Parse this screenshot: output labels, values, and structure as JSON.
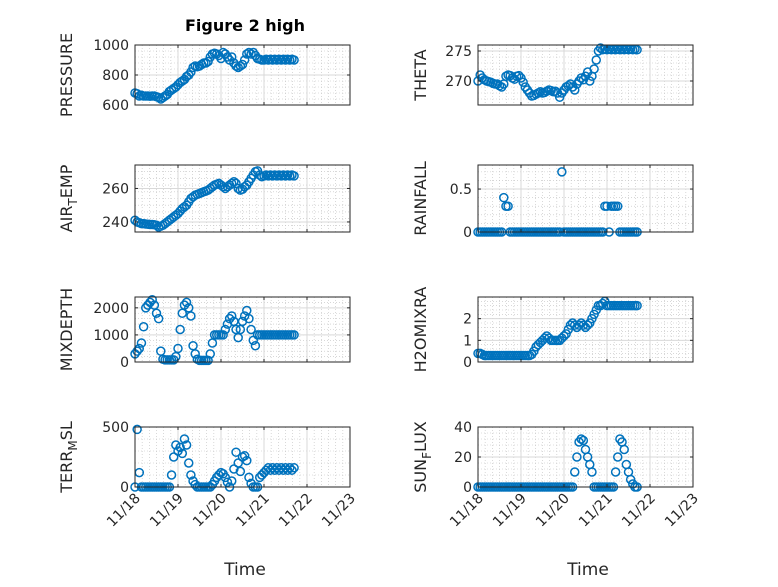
{
  "figure_title": "Figure 2 high",
  "xlabel_left": "Time",
  "xlabel_right": "Time",
  "x_tick_labels": [
    "11/18",
    "11/19",
    "11/20",
    "11/21",
    "11/22",
    "11/23"
  ],
  "colors": {
    "marker": "#0072BD",
    "axis": "#262626",
    "grid": "#d9d9d9",
    "minor_grid": "#c0c0c0"
  },
  "chart_data": [
    {
      "type": "scatter",
      "ylabel_parts": [
        "PRESSURE"
      ],
      "ylim": [
        600,
        1000
      ],
      "yticks": [
        600,
        800,
        1000
      ],
      "yticklabels": [
        "600",
        "800",
        "1000"
      ],
      "xlim": [
        0,
        5
      ],
      "grid": true,
      "minor_grid": true,
      "x": [
        0.0,
        0.05,
        0.1,
        0.15,
        0.2,
        0.25,
        0.3,
        0.35,
        0.4,
        0.45,
        0.5,
        0.55,
        0.6,
        0.65,
        0.7,
        0.75,
        0.8,
        0.85,
        0.9,
        0.95,
        1.0,
        1.05,
        1.1,
        1.15,
        1.2,
        1.25,
        1.3,
        1.35,
        1.4,
        1.45,
        1.5,
        1.55,
        1.6,
        1.65,
        1.7,
        1.75,
        1.8,
        1.85,
        1.9,
        1.95,
        2.0,
        2.05,
        2.1,
        2.15,
        2.2,
        2.25,
        2.3,
        2.35,
        2.4,
        2.45,
        2.5,
        2.55,
        2.6,
        2.65,
        2.7,
        2.75,
        2.8,
        2.85,
        2.9,
        2.95,
        3.0,
        3.05,
        3.1,
        3.15,
        3.2,
        3.25,
        3.3,
        3.35,
        3.4,
        3.45,
        3.5,
        3.55,
        3.6,
        3.65,
        3.7
      ],
      "y": [
        680,
        675,
        660,
        665,
        660,
        660,
        660,
        658,
        660,
        660,
        655,
        650,
        640,
        650,
        660,
        670,
        690,
        700,
        710,
        720,
        735,
        750,
        760,
        770,
        790,
        800,
        820,
        850,
        860,
        855,
        860,
        870,
        880,
        880,
        890,
        920,
        940,
        945,
        940,
        930,
        910,
        950,
        940,
        920,
        900,
        920,
        880,
        860,
        850,
        860,
        870,
        900,
        940,
        950,
        940,
        950,
        930,
        910,
        905,
        900,
        900,
        905,
        900,
        905,
        900,
        905,
        900,
        905,
        900,
        905,
        900,
        905,
        900,
        905,
        900
      ]
    },
    {
      "type": "scatter",
      "ylabel_parts": [
        "THETA"
      ],
      "ylim": [
        266,
        276
      ],
      "yticks": [
        270,
        275
      ],
      "yticklabels": [
        "270",
        "275"
      ],
      "xlim": [
        0,
        5
      ],
      "grid": true,
      "minor_grid": true,
      "x": [
        0.0,
        0.05,
        0.1,
        0.15,
        0.2,
        0.25,
        0.3,
        0.35,
        0.4,
        0.45,
        0.5,
        0.55,
        0.6,
        0.65,
        0.7,
        0.75,
        0.8,
        0.85,
        0.9,
        0.95,
        1.0,
        1.05,
        1.1,
        1.15,
        1.2,
        1.25,
        1.3,
        1.35,
        1.4,
        1.45,
        1.5,
        1.55,
        1.6,
        1.65,
        1.7,
        1.75,
        1.8,
        1.85,
        1.9,
        1.95,
        2.0,
        2.05,
        2.1,
        2.15,
        2.2,
        2.25,
        2.3,
        2.35,
        2.4,
        2.45,
        2.5,
        2.55,
        2.6,
        2.65,
        2.7,
        2.75,
        2.8,
        2.85,
        2.9,
        2.95,
        3.0,
        3.05,
        3.1,
        3.15,
        3.2,
        3.25,
        3.3,
        3.35,
        3.4,
        3.45,
        3.5,
        3.55,
        3.6,
        3.65,
        3.7
      ],
      "y": [
        270.0,
        271.0,
        270.5,
        270.2,
        270.0,
        269.9,
        269.8,
        269.6,
        269.5,
        269.5,
        269.2,
        269.0,
        269.5,
        270.8,
        271.0,
        270.9,
        270.5,
        270.3,
        270.8,
        270.9,
        270.5,
        269.8,
        269.0,
        268.5,
        268.0,
        267.5,
        267.6,
        267.8,
        268.0,
        268.2,
        268.0,
        268.1,
        268.3,
        268.5,
        268.4,
        268.2,
        268.3,
        268.0,
        267.3,
        268.0,
        268.5,
        269.0,
        269.2,
        269.5,
        269.0,
        268.5,
        269.5,
        270.0,
        270.5,
        270.2,
        270.8,
        271.5,
        270.0,
        270.8,
        272.0,
        273.5,
        275.0,
        275.5,
        275.2,
        275.3,
        275.2,
        275.3,
        275.2,
        275.3,
        275.2,
        275.3,
        275.2,
        275.3,
        275.2,
        275.3,
        275.2,
        275.3,
        275.2,
        275.3,
        275.2
      ]
    },
    {
      "type": "scatter",
      "ylabel_parts": [
        "AIR",
        "T",
        "EMP"
      ],
      "ylim": [
        234,
        274
      ],
      "yticks": [
        240,
        260
      ],
      "yticklabels": [
        "240",
        "260"
      ],
      "xlim": [
        0,
        5
      ],
      "grid": true,
      "minor_grid": true,
      "x": [
        0.0,
        0.05,
        0.1,
        0.15,
        0.2,
        0.25,
        0.3,
        0.35,
        0.4,
        0.45,
        0.5,
        0.55,
        0.6,
        0.65,
        0.7,
        0.75,
        0.8,
        0.85,
        0.9,
        0.95,
        1.0,
        1.05,
        1.1,
        1.15,
        1.2,
        1.25,
        1.3,
        1.35,
        1.4,
        1.45,
        1.5,
        1.55,
        1.6,
        1.65,
        1.7,
        1.75,
        1.8,
        1.85,
        1.9,
        1.95,
        2.0,
        2.05,
        2.1,
        2.15,
        2.2,
        2.25,
        2.3,
        2.35,
        2.4,
        2.45,
        2.5,
        2.55,
        2.6,
        2.65,
        2.7,
        2.75,
        2.8,
        2.85,
        2.9,
        2.95,
        3.0,
        3.05,
        3.1,
        3.15,
        3.2,
        3.25,
        3.3,
        3.35,
        3.4,
        3.45,
        3.5,
        3.55,
        3.6,
        3.65,
        3.7
      ],
      "y": [
        241,
        240,
        239.5,
        239,
        239,
        238.8,
        238.6,
        238.5,
        238.5,
        238.3,
        238,
        237,
        237.5,
        238,
        239,
        240,
        241,
        242,
        243,
        244,
        245,
        246.5,
        248,
        249,
        250,
        252,
        254,
        255,
        256,
        256.5,
        257,
        257.5,
        258,
        258.5,
        259,
        260,
        261,
        262,
        262.5,
        263,
        262,
        261,
        260,
        261,
        262,
        263,
        264,
        263,
        260,
        259,
        259.5,
        261,
        262,
        264,
        266,
        268,
        270,
        270.5,
        268,
        267,
        267.5,
        268,
        267.5,
        268,
        267.5,
        268,
        267.5,
        268,
        267.5,
        268,
        267.5,
        268,
        267.5,
        268,
        267.5
      ]
    },
    {
      "type": "scatter",
      "ylabel_parts": [
        "RAINFALL"
      ],
      "ylim": [
        0,
        0.78
      ],
      "yticks": [
        0,
        0.5
      ],
      "yticklabels": [
        "0",
        "0.5"
      ],
      "xlim": [
        0,
        5
      ],
      "grid": true,
      "minor_grid": true,
      "x": [
        0.0,
        0.05,
        0.1,
        0.15,
        0.2,
        0.25,
        0.3,
        0.35,
        0.4,
        0.45,
        0.5,
        0.55,
        0.6,
        0.65,
        0.7,
        0.75,
        0.8,
        0.85,
        0.9,
        0.95,
        1.0,
        1.05,
        1.1,
        1.15,
        1.2,
        1.25,
        1.3,
        1.35,
        1.4,
        1.45,
        1.5,
        1.55,
        1.6,
        1.65,
        1.7,
        1.75,
        1.8,
        1.85,
        1.9,
        1.95,
        2.0,
        2.05,
        2.1,
        2.15,
        2.2,
        2.25,
        2.3,
        2.35,
        2.4,
        2.45,
        2.5,
        2.55,
        2.6,
        2.65,
        2.7,
        2.75,
        2.8,
        2.85,
        2.9,
        2.95,
        3.0,
        3.05,
        3.1,
        3.15,
        3.2,
        3.25,
        3.3,
        3.35,
        3.4,
        3.45,
        3.5,
        3.55,
        3.6,
        3.65,
        3.7
      ],
      "y": [
        0,
        0,
        0,
        0,
        0,
        0,
        0,
        0,
        0,
        0,
        0,
        0,
        0.4,
        0.3,
        0.3,
        0,
        0,
        0,
        0,
        0,
        0,
        0,
        0,
        0,
        0,
        0,
        0,
        0,
        0,
        0,
        0,
        0,
        0,
        0,
        0,
        0,
        0,
        0,
        0,
        0.7,
        0,
        0,
        0,
        0,
        0,
        0,
        0,
        0,
        0,
        0,
        0,
        0,
        0,
        0,
        0,
        0,
        0,
        0,
        0,
        0.3,
        0.3,
        0,
        0.3,
        0.3,
        0.3,
        0.3,
        0,
        0,
        0,
        0,
        0,
        0,
        0,
        0,
        0
      ]
    },
    {
      "type": "scatter",
      "ylabel_parts": [
        "MIXDEPTH"
      ],
      "ylim": [
        0,
        2400
      ],
      "yticks": [
        0,
        1000,
        2000
      ],
      "yticklabels": [
        "0",
        "1000",
        "2000"
      ],
      "xlim": [
        0,
        5
      ],
      "grid": true,
      "minor_grid": true,
      "x": [
        0.0,
        0.05,
        0.1,
        0.15,
        0.2,
        0.25,
        0.3,
        0.35,
        0.4,
        0.45,
        0.5,
        0.55,
        0.6,
        0.65,
        0.7,
        0.75,
        0.8,
        0.85,
        0.9,
        0.95,
        1.0,
        1.05,
        1.1,
        1.15,
        1.2,
        1.25,
        1.3,
        1.35,
        1.4,
        1.45,
        1.5,
        1.55,
        1.6,
        1.65,
        1.7,
        1.75,
        1.8,
        1.85,
        1.9,
        1.95,
        2.0,
        2.05,
        2.1,
        2.15,
        2.2,
        2.25,
        2.3,
        2.35,
        2.4,
        2.45,
        2.5,
        2.55,
        2.6,
        2.65,
        2.7,
        2.75,
        2.8,
        2.85,
        2.9,
        2.95,
        3.0,
        3.05,
        3.1,
        3.15,
        3.2,
        3.25,
        3.3,
        3.35,
        3.4,
        3.45,
        3.5,
        3.55,
        3.6,
        3.65,
        3.7
      ],
      "y": [
        300,
        400,
        500,
        700,
        1300,
        2000,
        2100,
        2200,
        2300,
        2100,
        1800,
        1600,
        400,
        100,
        80,
        80,
        80,
        80,
        80,
        200,
        500,
        1200,
        1800,
        2100,
        2200,
        2000,
        1700,
        600,
        300,
        100,
        60,
        60,
        60,
        60,
        60,
        300,
        700,
        1000,
        1000,
        1000,
        1000,
        1000,
        1200,
        1400,
        1600,
        1700,
        1500,
        1200,
        900,
        1200,
        1500,
        1700,
        1900,
        1600,
        1200,
        800,
        600,
        1000,
        1000,
        1000,
        1000,
        1000,
        1000,
        1000,
        1000,
        1000,
        1000,
        1000,
        1000,
        1000,
        1000,
        1000,
        1000,
        1000,
        1000
      ]
    },
    {
      "type": "scatter",
      "ylabel_parts": [
        "H2OMIXRA"
      ],
      "ylim": [
        0,
        3
      ],
      "yticks": [
        0,
        1,
        2
      ],
      "yticklabels": [
        "0",
        "1",
        "2"
      ],
      "xlim": [
        0,
        5
      ],
      "grid": true,
      "minor_grid": true,
      "x": [
        0.0,
        0.05,
        0.1,
        0.15,
        0.2,
        0.25,
        0.3,
        0.35,
        0.4,
        0.45,
        0.5,
        0.55,
        0.6,
        0.65,
        0.7,
        0.75,
        0.8,
        0.85,
        0.9,
        0.95,
        1.0,
        1.05,
        1.1,
        1.15,
        1.2,
        1.25,
        1.3,
        1.35,
        1.4,
        1.45,
        1.5,
        1.55,
        1.6,
        1.65,
        1.7,
        1.75,
        1.8,
        1.85,
        1.9,
        1.95,
        2.0,
        2.05,
        2.1,
        2.15,
        2.2,
        2.25,
        2.3,
        2.35,
        2.4,
        2.45,
        2.5,
        2.55,
        2.6,
        2.65,
        2.7,
        2.75,
        2.8,
        2.85,
        2.9,
        2.95,
        3.0,
        3.05,
        3.1,
        3.15,
        3.2,
        3.25,
        3.3,
        3.35,
        3.4,
        3.45,
        3.5,
        3.55,
        3.6,
        3.65,
        3.7
      ],
      "y": [
        0.4,
        0.4,
        0.35,
        0.3,
        0.3,
        0.3,
        0.3,
        0.3,
        0.3,
        0.3,
        0.3,
        0.3,
        0.3,
        0.3,
        0.3,
        0.3,
        0.3,
        0.3,
        0.3,
        0.3,
        0.3,
        0.3,
        0.3,
        0.3,
        0.3,
        0.35,
        0.5,
        0.7,
        0.8,
        0.9,
        1.0,
        1.1,
        1.2,
        1.1,
        1.0,
        1.0,
        1.0,
        1.0,
        1.0,
        1.1,
        1.2,
        1.3,
        1.5,
        1.7,
        1.8,
        1.7,
        1.6,
        1.7,
        1.8,
        1.7,
        1.6,
        1.7,
        1.8,
        2.0,
        2.2,
        2.4,
        2.6,
        2.6,
        2.7,
        2.8,
        2.6,
        2.6,
        2.6,
        2.6,
        2.6,
        2.6,
        2.6,
        2.6,
        2.6,
        2.6,
        2.6,
        2.6,
        2.6,
        2.6,
        2.6
      ]
    },
    {
      "type": "scatter",
      "ylabel_parts": [
        "TERR",
        "M",
        "SL"
      ],
      "ylim": [
        0,
        500
      ],
      "yticks": [
        0,
        500
      ],
      "yticklabels": [
        "0",
        "500"
      ],
      "xlim": [
        0,
        5
      ],
      "grid": true,
      "minor_grid": true,
      "x": [
        0.0,
        0.05,
        0.1,
        0.15,
        0.2,
        0.25,
        0.3,
        0.35,
        0.4,
        0.45,
        0.5,
        0.55,
        0.6,
        0.65,
        0.7,
        0.75,
        0.8,
        0.85,
        0.9,
        0.95,
        1.0,
        1.05,
        1.1,
        1.15,
        1.2,
        1.25,
        1.3,
        1.35,
        1.4,
        1.45,
        1.5,
        1.55,
        1.6,
        1.65,
        1.7,
        1.75,
        1.8,
        1.85,
        1.9,
        1.95,
        2.0,
        2.05,
        2.1,
        2.15,
        2.2,
        2.25,
        2.3,
        2.35,
        2.4,
        2.45,
        2.5,
        2.55,
        2.6,
        2.65,
        2.7,
        2.75,
        2.8,
        2.85,
        2.9,
        2.95,
        3.0,
        3.05,
        3.1,
        3.15,
        3.2,
        3.25,
        3.3,
        3.35,
        3.4,
        3.45,
        3.5,
        3.55,
        3.6,
        3.65,
        3.7
      ],
      "y": [
        0,
        480,
        120,
        0,
        0,
        0,
        0,
        0,
        0,
        0,
        0,
        0,
        0,
        0,
        0,
        0,
        0,
        100,
        250,
        350,
        300,
        330,
        280,
        400,
        350,
        200,
        100,
        50,
        20,
        0,
        0,
        0,
        0,
        0,
        0,
        0,
        20,
        50,
        80,
        100,
        120,
        110,
        80,
        40,
        0,
        50,
        150,
        290,
        200,
        130,
        250,
        260,
        220,
        80,
        30,
        0,
        0,
        0,
        80,
        100,
        120,
        140,
        160,
        140,
        160,
        140,
        160,
        140,
        160,
        140,
        160,
        140,
        160,
        140,
        160
      ]
    },
    {
      "type": "scatter",
      "ylabel_parts": [
        "SUN",
        "F",
        "LUX"
      ],
      "ylim": [
        0,
        40
      ],
      "yticks": [
        0,
        20,
        40
      ],
      "yticklabels": [
        "0",
        "20",
        "40"
      ],
      "xlim": [
        0,
        5
      ],
      "grid": true,
      "minor_grid": true,
      "x": [
        0.0,
        0.05,
        0.1,
        0.15,
        0.2,
        0.25,
        0.3,
        0.35,
        0.4,
        0.45,
        0.5,
        0.55,
        0.6,
        0.65,
        0.7,
        0.75,
        0.8,
        0.85,
        0.9,
        0.95,
        1.0,
        1.05,
        1.1,
        1.15,
        1.2,
        1.25,
        1.3,
        1.35,
        1.4,
        1.45,
        1.5,
        1.55,
        1.6,
        1.65,
        1.7,
        1.75,
        1.8,
        1.85,
        1.9,
        1.95,
        2.0,
        2.05,
        2.1,
        2.15,
        2.2,
        2.25,
        2.3,
        2.35,
        2.4,
        2.45,
        2.5,
        2.55,
        2.6,
        2.65,
        2.7,
        2.75,
        2.8,
        2.85,
        2.9,
        2.95,
        3.0,
        3.05,
        3.1,
        3.15,
        3.2,
        3.25,
        3.3,
        3.35,
        3.4,
        3.45,
        3.5,
        3.55,
        3.6,
        3.65,
        3.7
      ],
      "y": [
        0,
        0,
        0,
        0,
        0,
        0,
        0,
        0,
        0,
        0,
        0,
        0,
        0,
        0,
        0,
        0,
        0,
        0,
        0,
        0,
        0,
        0,
        0,
        0,
        0,
        0,
        0,
        0,
        0,
        0,
        0,
        0,
        0,
        0,
        0,
        0,
        0,
        0,
        0,
        0,
        0,
        0,
        0,
        0,
        0,
        10,
        20,
        30,
        32,
        31,
        25,
        20,
        15,
        10,
        0,
        0,
        0,
        0,
        0,
        0,
        0,
        0,
        0,
        0,
        10,
        20,
        32,
        30,
        25,
        15,
        10,
        5,
        2,
        0,
        0
      ]
    }
  ]
}
